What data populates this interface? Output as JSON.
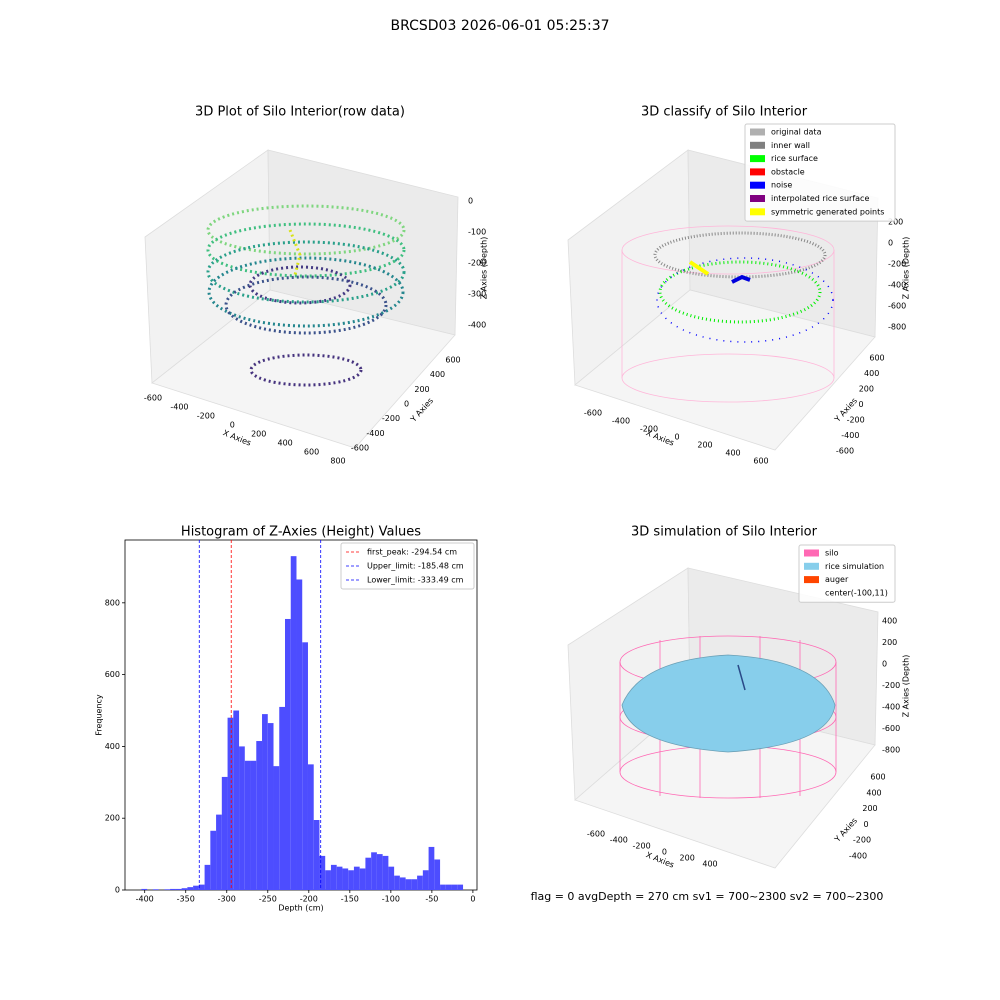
{
  "title": "BRCSD03 2026-06-01 05:25:37",
  "footer": "flag = 0     avgDepth = 270 cm  sv1 = 700~2300  sv2 = 700~2300",
  "chart_data": [
    {
      "type": "scatter3d",
      "title": "3D Plot of Silo Interior(row data)",
      "xlabel": "X Axies",
      "ylabel": "Y Axies",
      "zlabel": "Z Axies (Depth)",
      "xticks": [
        -600,
        -400,
        -200,
        0,
        200,
        400,
        600,
        800
      ],
      "yticks": [
        -600,
        -400,
        -200,
        0,
        200,
        400,
        600
      ],
      "zticks": [
        0,
        -100,
        -200,
        -300,
        -400
      ]
    },
    {
      "type": "scatter3d",
      "title": "3D classify of Silo Interior",
      "xlabel": "X Axies",
      "ylabel": "Y Axies",
      "zlabel": "Z Axies (Depth)",
      "xticks": [
        -600,
        -400,
        -200,
        0,
        200,
        400,
        600
      ],
      "yticks": [
        -600,
        -400,
        -200,
        0,
        200,
        400,
        600
      ],
      "zticks": [
        200,
        0,
        -200,
        -400,
        -600,
        -800
      ],
      "legend": [
        {
          "name": "original data",
          "color": "#b0b0b0"
        },
        {
          "name": "inner wall",
          "color": "#808080"
        },
        {
          "name": "rice surface",
          "color": "#00ff00"
        },
        {
          "name": "obstacle",
          "color": "#ff0000"
        },
        {
          "name": "noise",
          "color": "#0000ff"
        },
        {
          "name": "interpolated rice surface",
          "color": "#800080"
        },
        {
          "name": "symmetric generated points",
          "color": "#ffff00"
        }
      ]
    },
    {
      "type": "histogram",
      "title": "Histogram of Z-Axies (Height) Values",
      "xlabel": "Depth (cm)",
      "ylabel": "Frequency",
      "color": "#4d4dff",
      "bins": [
        -404,
        -397,
        -390,
        -383,
        -376,
        -369,
        -362,
        -355,
        -348,
        -341,
        -334,
        -327,
        -320,
        -313,
        -306,
        -299,
        -292,
        -285,
        -278,
        -271,
        -264,
        -257,
        -250,
        -243,
        -236,
        -229,
        -222,
        -215,
        -208,
        -201,
        -194,
        -187,
        -180,
        -173,
        -166,
        -159,
        -152,
        -145,
        -138,
        -131,
        -124,
        -117,
        -110,
        -103,
        -96,
        -89,
        -82,
        -75,
        -68,
        -61,
        -54,
        -47,
        -40,
        -33,
        -26,
        -19,
        -12
      ],
      "values": [
        3,
        0,
        2,
        0,
        2,
        3,
        3,
        5,
        8,
        12,
        15,
        70,
        165,
        210,
        315,
        480,
        500,
        400,
        360,
        360,
        415,
        490,
        465,
        345,
        510,
        755,
        930,
        865,
        690,
        350,
        195,
        95,
        55,
        70,
        65,
        60,
        55,
        65,
        60,
        90,
        105,
        100,
        95,
        65,
        40,
        35,
        30,
        30,
        40,
        55,
        120,
        85,
        15,
        15,
        15,
        15
      ],
      "xlim": [
        -424,
        5
      ],
      "ylim": [
        0,
        975
      ],
      "xticks": [
        -400,
        -350,
        -300,
        -250,
        -200,
        -150,
        -100,
        -50,
        0
      ],
      "yticks": [
        0,
        200,
        400,
        600,
        800
      ],
      "vlines": [
        {
          "name": "first_peak: -294.54 cm",
          "value": -294.54,
          "color": "#ff0000"
        },
        {
          "name": "Upper_limit: -185.48 cm",
          "value": -185.48,
          "color": "#0000ff"
        },
        {
          "name": "Lower_limit: -333.49 cm",
          "value": -333.49,
          "color": "#0000ff"
        }
      ],
      "legend_position": "upper right"
    },
    {
      "type": "surface3d",
      "title": "3D simulation of Silo Interior",
      "xlabel": "X Axies",
      "ylabel": "Y Axies",
      "zlabel": "Z Axies (Depth)",
      "xticks": [
        -600,
        -400,
        -200,
        0,
        200,
        400
      ],
      "yticks": [
        -400,
        -200,
        0,
        200,
        400,
        600
      ],
      "zticks": [
        400,
        200,
        0,
        -200,
        -400,
        -600,
        -800
      ],
      "legend": [
        {
          "name": "silo",
          "color": "#ff69b4"
        },
        {
          "name": "rice simulation",
          "color": "#87ceeb"
        },
        {
          "name": "auger",
          "color": "#ff4500"
        },
        {
          "name": "center(-100,11)"
        }
      ]
    }
  ]
}
